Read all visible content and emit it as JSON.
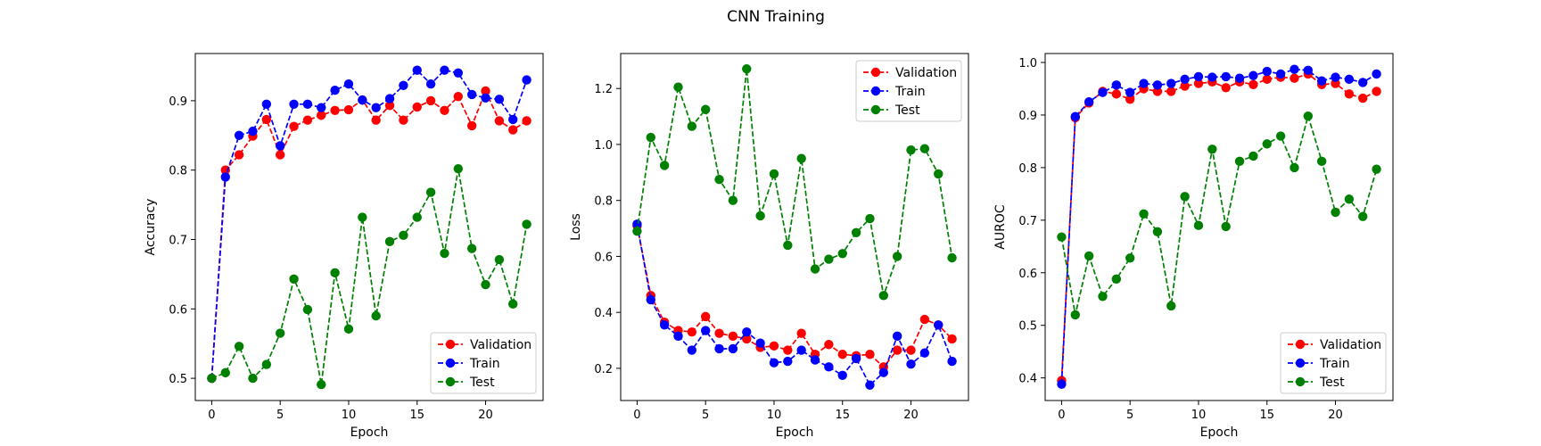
{
  "figure": {
    "title": "CNN Training"
  },
  "chart_data": [
    {
      "type": "line",
      "xlabel": "Epoch",
      "ylabel": "Accuracy",
      "xlim": [
        -1.2,
        24.2
      ],
      "ylim": [
        0.468,
        0.968
      ],
      "xticks": [
        0,
        5,
        10,
        15,
        20
      ],
      "yticks": [
        0.5,
        0.6,
        0.7,
        0.8,
        0.9
      ],
      "ytick_labels": [
        "0.5",
        "0.6",
        "0.7",
        "0.8",
        "0.9"
      ],
      "legend": "lower-right",
      "x": [
        0,
        1,
        2,
        3,
        4,
        5,
        6,
        7,
        8,
        9,
        10,
        11,
        12,
        13,
        14,
        15,
        16,
        17,
        18,
        19,
        20,
        21,
        22,
        23
      ],
      "series": [
        {
          "name": "Validation",
          "color": "#ff0000",
          "values": [
            0.5,
            0.8,
            0.822,
            0.849,
            0.873,
            0.822,
            0.863,
            0.872,
            0.879,
            0.886,
            0.887,
            0.901,
            0.872,
            0.893,
            0.872,
            0.891,
            0.9,
            0.886,
            0.906,
            0.864,
            0.914,
            0.871,
            0.858,
            0.871
          ]
        },
        {
          "name": "Train",
          "color": "#0000ff",
          "values": [
            0.5,
            0.79,
            0.85,
            0.856,
            0.895,
            0.835,
            0.895,
            0.895,
            0.89,
            0.915,
            0.924,
            0.901,
            0.89,
            0.903,
            0.922,
            0.944,
            0.924,
            0.944,
            0.94,
            0.909,
            0.904,
            0.902,
            0.873,
            0.93
          ]
        },
        {
          "name": "Test",
          "color": "#008000",
          "values": [
            0.5,
            0.508,
            0.546,
            0.5,
            0.52,
            0.565,
            0.643,
            0.599,
            0.491,
            0.652,
            0.571,
            0.732,
            0.59,
            0.697,
            0.706,
            0.732,
            0.768,
            0.68,
            0.802,
            0.687,
            0.635,
            0.671,
            0.607,
            0.722
          ]
        }
      ]
    },
    {
      "type": "line",
      "xlabel": "Epoch",
      "ylabel": "Loss",
      "xlim": [
        -1.2,
        24.2
      ],
      "ylim": [
        0.085,
        1.325
      ],
      "xticks": [
        0,
        5,
        10,
        15,
        20
      ],
      "yticks": [
        0.2,
        0.4,
        0.6,
        0.8,
        1.0,
        1.2
      ],
      "ytick_labels": [
        "0.2",
        "0.4",
        "0.6",
        "0.8",
        "1.0",
        "1.2"
      ],
      "legend": "top-right",
      "x": [
        0,
        1,
        2,
        3,
        4,
        5,
        6,
        7,
        8,
        9,
        10,
        11,
        12,
        13,
        14,
        15,
        16,
        17,
        18,
        19,
        20,
        21,
        22,
        23
      ],
      "series": [
        {
          "name": "Validation",
          "color": "#ff0000",
          "values": [
            0.71,
            0.46,
            0.365,
            0.335,
            0.33,
            0.385,
            0.325,
            0.315,
            0.305,
            0.275,
            0.28,
            0.265,
            0.325,
            0.25,
            0.285,
            0.25,
            0.245,
            0.25,
            0.205,
            0.265,
            0.265,
            0.375,
            0.355,
            0.305
          ]
        },
        {
          "name": "Train",
          "color": "#0000ff",
          "values": [
            0.715,
            0.445,
            0.355,
            0.315,
            0.265,
            0.335,
            0.27,
            0.27,
            0.33,
            0.29,
            0.22,
            0.225,
            0.265,
            0.23,
            0.205,
            0.175,
            0.235,
            0.14,
            0.185,
            0.315,
            0.215,
            0.255,
            0.355,
            0.225
          ]
        },
        {
          "name": "Test",
          "color": "#008000",
          "values": [
            0.69,
            1.025,
            0.925,
            1.205,
            1.065,
            1.125,
            0.875,
            0.8,
            1.27,
            0.745,
            0.895,
            0.64,
            0.95,
            0.555,
            0.59,
            0.61,
            0.685,
            0.735,
            0.46,
            0.6,
            0.98,
            0.985,
            0.895,
            0.595
          ]
        }
      ]
    },
    {
      "type": "line",
      "xlabel": "Epoch",
      "ylabel": "AUROC",
      "xlim": [
        -1.2,
        24.2
      ],
      "ylim": [
        0.357,
        1.017
      ],
      "xticks": [
        0,
        5,
        10,
        15,
        20
      ],
      "yticks": [
        0.4,
        0.5,
        0.6,
        0.7,
        0.8,
        0.9,
        1.0
      ],
      "ytick_labels": [
        "0.4",
        "0.5",
        "0.6",
        "0.7",
        "0.8",
        "0.9",
        "1.0"
      ],
      "legend": "lower-right",
      "x": [
        0,
        1,
        2,
        3,
        4,
        5,
        6,
        7,
        8,
        9,
        10,
        11,
        12,
        13,
        14,
        15,
        16,
        17,
        18,
        19,
        20,
        21,
        22,
        23
      ],
      "series": [
        {
          "name": "Validation",
          "color": "#ff0000",
          "values": [
            0.395,
            0.895,
            0.923,
            0.945,
            0.94,
            0.93,
            0.95,
            0.945,
            0.945,
            0.955,
            0.96,
            0.963,
            0.952,
            0.963,
            0.958,
            0.968,
            0.972,
            0.97,
            0.978,
            0.958,
            0.96,
            0.94,
            0.932,
            0.945
          ]
        },
        {
          "name": "Train",
          "color": "#0000ff",
          "values": [
            0.388,
            0.897,
            0.925,
            0.943,
            0.957,
            0.943,
            0.96,
            0.957,
            0.96,
            0.968,
            0.973,
            0.972,
            0.973,
            0.97,
            0.975,
            0.983,
            0.978,
            0.987,
            0.985,
            0.965,
            0.972,
            0.968,
            0.962,
            0.978
          ]
        },
        {
          "name": "Test",
          "color": "#008000",
          "values": [
            0.668,
            0.52,
            0.632,
            0.555,
            0.588,
            0.628,
            0.712,
            0.678,
            0.537,
            0.745,
            0.69,
            0.835,
            0.688,
            0.812,
            0.822,
            0.845,
            0.86,
            0.8,
            0.898,
            0.812,
            0.715,
            0.74,
            0.707,
            0.797
          ]
        }
      ]
    }
  ]
}
